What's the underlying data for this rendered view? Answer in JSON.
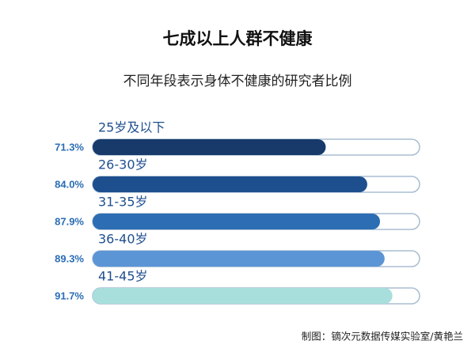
{
  "chart_data": {
    "type": "bar",
    "orientation": "horizontal",
    "title": "七成以上人群不健康",
    "subtitle": "不同年段表示身体不健康的研究者比例",
    "categories": [
      "25岁及以下",
      "26-30岁",
      "31-35岁",
      "36-40岁",
      "41-45岁"
    ],
    "values": [
      71.3,
      84.0,
      87.9,
      89.3,
      91.7
    ],
    "value_labels": [
      "71.3%",
      "84.0%",
      "87.9%",
      "89.3%",
      "91.7%"
    ],
    "colors": [
      "#173a6b",
      "#1d4f8e",
      "#2c6db3",
      "#5b95d5",
      "#a8dfdd"
    ],
    "xlim": [
      0,
      100
    ],
    "source": "制图：镝次元数据传媒实验室/黄艳兰"
  }
}
